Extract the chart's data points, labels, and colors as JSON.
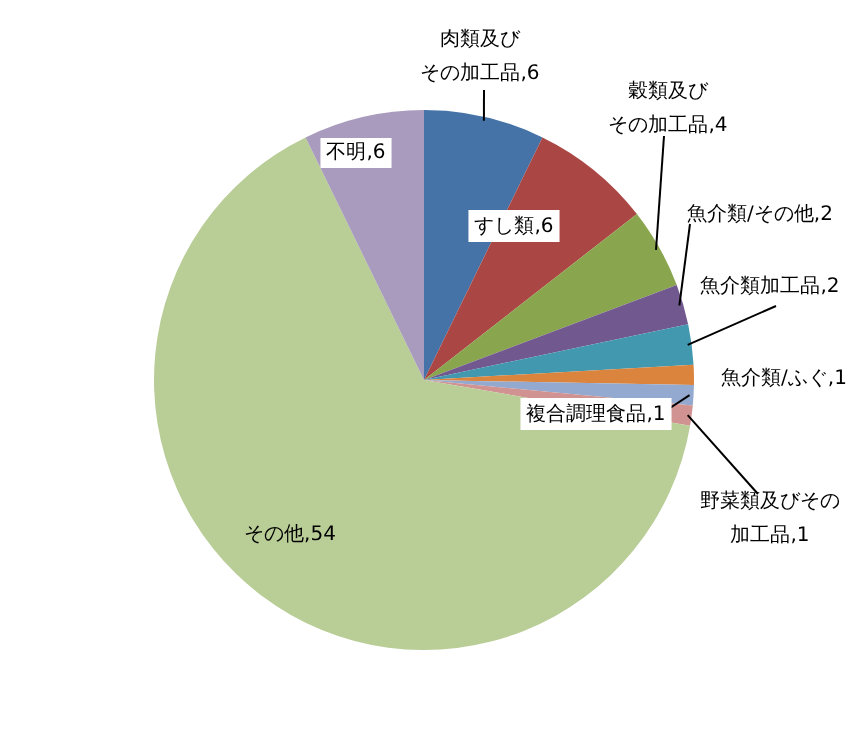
{
  "chart_data": {
    "type": "pie",
    "categories": [
      "肉類及びその加工品",
      "すし類",
      "穀類及びその加工品",
      "魚介類/その他",
      "魚介類加工品",
      "魚介類/ふぐ",
      "複合調理食品",
      "野菜類及びその加工品",
      "その他",
      "不明"
    ],
    "values": [
      6,
      6,
      4,
      2,
      2,
      1,
      1,
      1,
      54,
      6
    ],
    "colors": [
      "#4572a7",
      "#aa4643",
      "#89a54e",
      "#71588f",
      "#4198af",
      "#db843d",
      "#93a9cf",
      "#d19392",
      "#b9cd96",
      "#a99bbd"
    ],
    "value_labels": [
      ",6",
      ",6",
      ",4",
      ",2",
      ",2",
      ",1",
      ",1",
      ",1",
      ",54",
      ",6"
    ]
  }
}
